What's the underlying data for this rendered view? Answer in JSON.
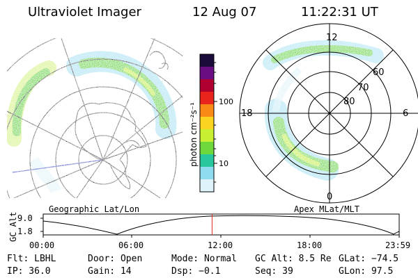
{
  "header": {
    "instrument": "Ultraviolet Imager",
    "date": "12 Aug 07",
    "time": "11:22:31 UT"
  },
  "geo_panel": {
    "caption": "Geographic Lat/Lon"
  },
  "mag_panel": {
    "caption": "Apex MLat/MLT",
    "mlt_labels": {
      "top": "12",
      "left": "18",
      "right": "6",
      "bottom": "0"
    },
    "lat_labels": [
      "60",
      "70",
      "80"
    ]
  },
  "colorbar": {
    "unit_label": "photon cm⁻²s⁻¹",
    "tick_labels": [
      "100",
      "10"
    ],
    "colors": [
      "#1b0b3a",
      "#6a0d83",
      "#b00030",
      "#e8241d",
      "#f98a16",
      "#fbd41f",
      "#c9ef32",
      "#6fd93c",
      "#29c79c",
      "#8fdcf0",
      "#dff3fa"
    ]
  },
  "altitude_plot": {
    "ylabel": "GC Alt",
    "y_ticks": [
      "9.0",
      "1.8"
    ],
    "x_ticks": [
      "00:00",
      "06:00",
      "12:00",
      "18:00",
      "23:59"
    ],
    "current_time_hours": 11.375,
    "current_marker_color": "#e8241d"
  },
  "info": {
    "row1": {
      "filter": "Flt: LBHL",
      "door": "Door: Open",
      "mode": "Mode: Normal",
      "gc_alt": "GC Alt: 8.5 Re",
      "glat": "GLat: −74.5"
    },
    "row2": {
      "ip": "IP: 36.0",
      "gain": "Gain: 14",
      "dsp": "Dsp:   −0.1",
      "seq": "Seq: 39",
      "glon": "GLon:  97.5"
    }
  }
}
